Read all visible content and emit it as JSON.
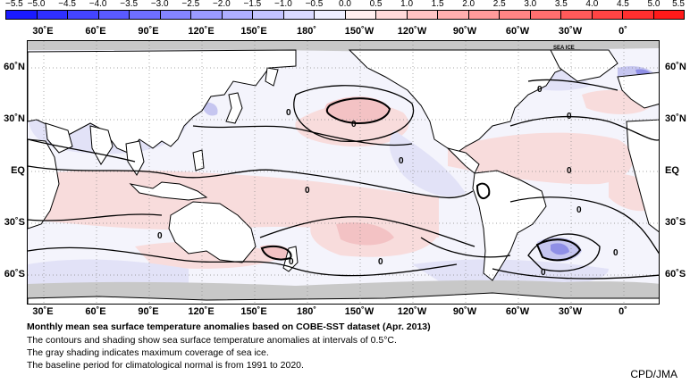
{
  "colorbar": {
    "labels": [
      "−5.5",
      "−5.0",
      "−4.5",
      "−4.0",
      "−3.5",
      "−3.0",
      "−2.5",
      "−2.0",
      "−1.5",
      "−1.0",
      "−0.5",
      "0.0",
      "0.5",
      "1.0",
      "1.5",
      "2.0",
      "2.5",
      "3.0",
      "3.5",
      "4.0",
      "4.5",
      "5.0",
      "5.5"
    ],
    "colors": [
      "#1a1aff",
      "#2f2fff",
      "#4444ff",
      "#5a5aff",
      "#6f6fff",
      "#8484ff",
      "#9a9aff",
      "#afafff",
      "#c4c4ff",
      "#dadaff",
      "#efefff",
      "#ffefef",
      "#ffdada",
      "#ffc4c4",
      "#ffafaf",
      "#ff9a9a",
      "#ff8484",
      "#ff6f6f",
      "#ff5a5a",
      "#ff4444",
      "#ff2f2f",
      "#ff1a1a"
    ]
  },
  "longitude_labels": [
    "30˚E",
    "60˚E",
    "90˚E",
    "120˚E",
    "150˚E",
    "180˚",
    "150˚W",
    "120˚W",
    "90˚W",
    "60˚W",
    "30˚W",
    "0˚"
  ],
  "latitude_labels": [
    "60˚N",
    "30˚N",
    "EQ",
    "30˚S",
    "60˚S"
  ],
  "map": {
    "sea_ice_label": "SEA ICE",
    "contour_label": "0",
    "colors": {
      "land": "#ffffff",
      "ice": "#c8c8c8",
      "warm": "#f8dcdc",
      "warm2": "#f3c2c4",
      "cool": "#e4e4f8",
      "cool2": "#c9c9f2",
      "cool3": "#8f8fe6"
    }
  },
  "caption": {
    "title": "Monthly mean sea surface temperature anomalies based on COBE-SST dataset (Apr. 2013)",
    "line1": "The contours and shading show sea surface temperature anomalies at intervals of 0.5°C.",
    "line2": "The gray shading indicates maximum coverage of sea ice.",
    "line3": "The baseline period for climatological normal is from 1991 to 2020."
  },
  "credit": "CPD/JMA"
}
